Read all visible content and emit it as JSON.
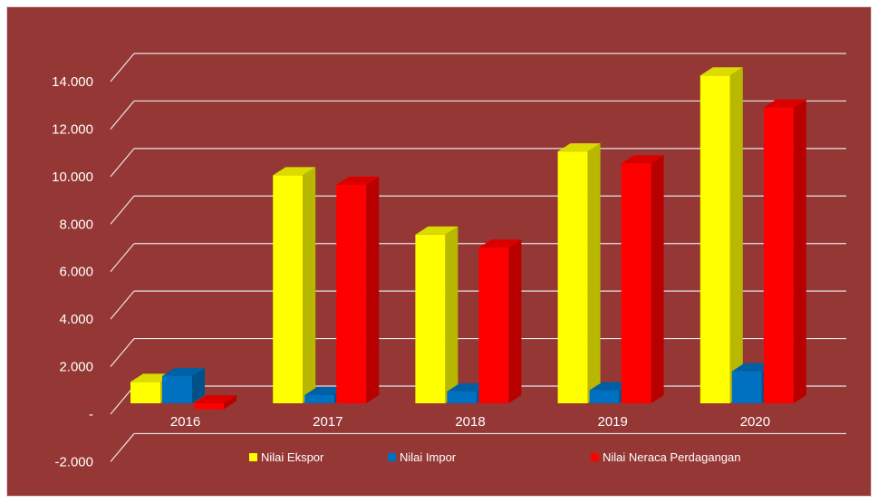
{
  "chart_data": {
    "type": "bar",
    "categories": [
      "2016",
      "2017",
      "2018",
      "2019",
      "2020"
    ],
    "series": [
      {
        "name": "Nilai Ekspor",
        "color": "#ffff00",
        "values": [
          900,
          9600,
          7100,
          10600,
          13800
        ]
      },
      {
        "name": "Nilai Impor",
        "color": "#0070c0",
        "values": [
          1150,
          350,
          500,
          550,
          1350
        ]
      },
      {
        "name": "Nilai Neraca Perdagangan",
        "color": "#ff0000",
        "values": [
          -250,
          9200,
          6550,
          10100,
          12450
        ]
      }
    ],
    "ylim": [
      -2000,
      14000
    ],
    "yticks": [
      -2000,
      0,
      2000,
      4000,
      6000,
      8000,
      10000,
      12000,
      14000
    ],
    "ytick_labels": [
      "-2.000",
      "-",
      "2.000",
      "4.000",
      "6.000",
      "8.000",
      "10.000",
      "12.000",
      "14.000"
    ],
    "grid": true,
    "legend_position": "bottom",
    "background": "#953735"
  }
}
